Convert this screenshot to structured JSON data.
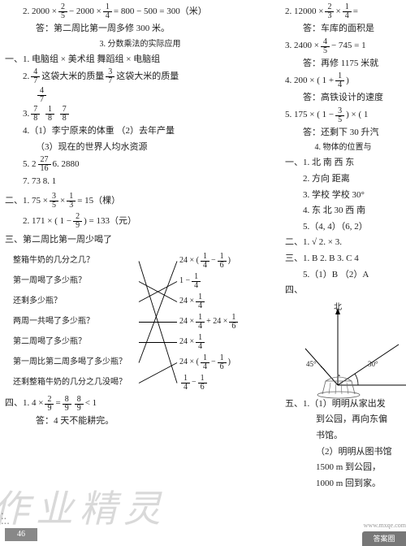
{
  "left": {
    "l1_expr": "2. 2000 × ",
    "l1_f1": {
      "n": "2",
      "d": "5"
    },
    "l1_mid": " − 2000 × ",
    "l1_f2": {
      "n": "1",
      "d": "4"
    },
    "l1_tail": " = 800 − 500 = 300（米）",
    "l2": "答：第二周比第一周多修 300 米。",
    "sec3": "3. 分数乘法的实际应用",
    "y1_1": "一、1. 电脑组 × 美术组 舞蹈组 × 电脑组",
    "y1_2a": "2. ",
    "y1_2f1": {
      "n": "4",
      "d": "7"
    },
    "y1_2b": " 这袋大米的质量 ",
    "y1_2f2": {
      "n": "3",
      "d": "7"
    },
    "y1_2c": " 这袋大米的质量",
    "y1_2f3": {
      "n": "4",
      "d": "7"
    },
    "y1_3a": "3. ",
    "y1_3f1": {
      "n": "7",
      "d": "8"
    },
    "y1_3f2": {
      "n": "1",
      "d": "8"
    },
    "y1_3f3": {
      "n": "7",
      "d": "8"
    },
    "y1_4a": "4.（1）李宁原来的体重 （2）去年产量",
    "y1_4b": "（3）现在的世界人均水资源",
    "y1_5a": "5. 2 ",
    "y1_5f": {
      "n": "27",
      "d": "16"
    },
    "y1_5b": " 6. 2880",
    "y1_7": "7. 73 8. 1",
    "y2_1a": "二、1. 75 × ",
    "y2_1f1": {
      "n": "3",
      "d": "5"
    },
    "y2_1b": " × ",
    "y2_1f2": {
      "n": "1",
      "d": "3"
    },
    "y2_1c": " = 15（棵）",
    "y2_2a": "2. 171 × ( 1 − ",
    "y2_2f": {
      "n": "2",
      "d": "9"
    },
    "y2_2b": " ) = 133（元）",
    "y3_head": "三、第二周比第一周少喝了",
    "qa": {
      "left": [
        "整箱牛奶的几分之几？",
        "第一周喝了多少瓶？",
        "还剩多少瓶？",
        "两周一共喝了多少瓶？",
        "第二周喝了多少瓶？",
        "第一周比第二周多喝了多少瓶？",
        "还剩整箱牛奶的几分之几没喝？"
      ],
      "right_expr": [
        {
          "pre": "24 × ( ",
          "f1": {
            "n": "1",
            "d": "4"
          },
          "mid": " − ",
          "f2": {
            "n": "1",
            "d": "6"
          },
          "post": " )"
        },
        {
          "pre": "1 − ",
          "f1": {
            "n": "1",
            "d": "4"
          },
          "mid": "",
          "f2": null,
          "post": ""
        },
        {
          "pre": "24 × ",
          "f1": {
            "n": "1",
            "d": "4"
          },
          "mid": "",
          "f2": null,
          "post": ""
        },
        {
          "pre": "24 × ",
          "f1": {
            "n": "1",
            "d": "4"
          },
          "mid": " + 24 × ",
          "f2": {
            "n": "1",
            "d": "6"
          },
          "post": ""
        },
        {
          "pre": "24 × ",
          "f1": {
            "n": "1",
            "d": "4"
          },
          "mid": "",
          "f2": null,
          "post": ""
        },
        {
          "pre": "24 × ( ",
          "f1": {
            "n": "1",
            "d": "4"
          },
          "mid": " − ",
          "f2": {
            "n": "1",
            "d": "6"
          },
          "post": " )"
        },
        {
          "pre": "",
          "f1": {
            "n": "1",
            "d": "4"
          },
          "mid": " − ",
          "f2": {
            "n": "1",
            "d": "6"
          },
          "post": ""
        }
      ],
      "edges": [
        [
          0,
          6
        ],
        [
          1,
          2
        ],
        [
          2,
          1
        ],
        [
          3,
          3
        ],
        [
          4,
          4
        ],
        [
          5,
          0
        ],
        [
          6,
          5
        ]
      ]
    },
    "y4a": "四、1. 4 × ",
    "y4f1": {
      "n": "2",
      "d": "9"
    },
    "y4b": " = ",
    "y4f2": {
      "n": "8",
      "d": "9"
    },
    "y4c": " ",
    "y4f3": {
      "n": "8",
      "d": "9"
    },
    "y4d": " < 1",
    "y4ans": "答：4 天不能耕完。",
    "page": "46",
    "watermark": "作业精灵"
  },
  "right": {
    "r1a": "2. 12000 × ",
    "r1f1": {
      "n": "2",
      "d": "3"
    },
    "r1b": " × ",
    "r1f2": {
      "n": "1",
      "d": "4"
    },
    "r1c": " =",
    "r1ans": "答：车库的面积是",
    "r2a": "3. 2400 × ",
    "r2f": {
      "n": "4",
      "d": "5"
    },
    "r2b": " − 745 = 1",
    "r2ans": "答：再修 1175 米就",
    "r3a": "4. 200 × ( 1 + ",
    "r3f": {
      "n": "1",
      "d": "4"
    },
    "r3b": " )",
    "r3ans": "答：高铁设计的速度",
    "r4a": "5. 175 × ( 1 − ",
    "r4f": {
      "n": "3",
      "d": "5"
    },
    "r4b": " ) × ( 1",
    "r4ans": "答：还剩下 30 升汽",
    "sec4": "4. 物体的位置与",
    "ry1_1": "一、1. 北 南 西 东",
    "ry1_2": "2. 方向 距离",
    "ry1_3": "3. 学校 学校 30°",
    "ry1_4": "4. 东 北 30 西 南",
    "ry1_5": "5.（4, 4）（6, 2）",
    "ry2": "二、1. √ 2. × 3.",
    "ry3": "三、1. B 2. B 3. C 4",
    "ry5": "5.（1）B （2）A",
    "ry4": "四、",
    "diagram": {
      "angle1": "30°",
      "angle2": "45°",
      "north": "北"
    },
    "ry5h": "五、1.（1）明明从家出发",
    "ry5b": "到公园，再向东偏",
    "ry5c": "书馆。",
    "ry5d": "（2）明明从图书馆",
    "ry5e": "1500 m 到公园，",
    "ry5f": "1000 m 回到家。",
    "badge": "答案圈",
    "url": "www.mxqe.com"
  },
  "colors": {
    "text": "#222222",
    "line": "#000000",
    "wm": "rgba(120,120,120,0.28)",
    "badge": "#888888"
  }
}
